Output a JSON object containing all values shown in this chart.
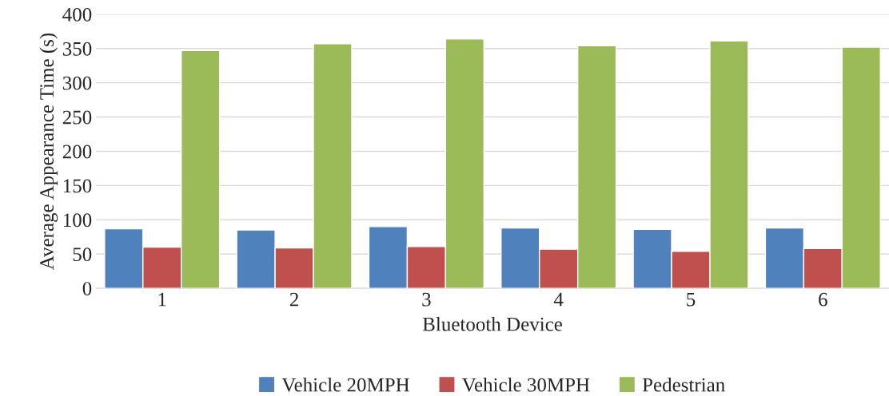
{
  "chart_data": {
    "type": "bar",
    "xlabel": "Bluetooth Device",
    "ylabel": "Average Appearance Time (s)",
    "categories": [
      "1",
      "2",
      "3",
      "4",
      "5",
      "6"
    ],
    "series": [
      {
        "name": "Vehicle 20MPH",
        "color": "#4f81bd",
        "values": [
          87,
          85,
          90,
          88,
          86,
          88
        ]
      },
      {
        "name": "Vehicle 30MPH",
        "color": "#c0504d",
        "values": [
          60,
          59,
          61,
          57,
          54,
          58
        ]
      },
      {
        "name": "Pedestrian",
        "color": "#9bbb59",
        "values": [
          347,
          357,
          364,
          354,
          361,
          352
        ]
      }
    ],
    "ylim": [
      0,
      400
    ],
    "yticks": [
      0,
      50,
      100,
      150,
      200,
      250,
      300,
      350,
      400
    ],
    "grid": "y",
    "legend": "bottom"
  }
}
